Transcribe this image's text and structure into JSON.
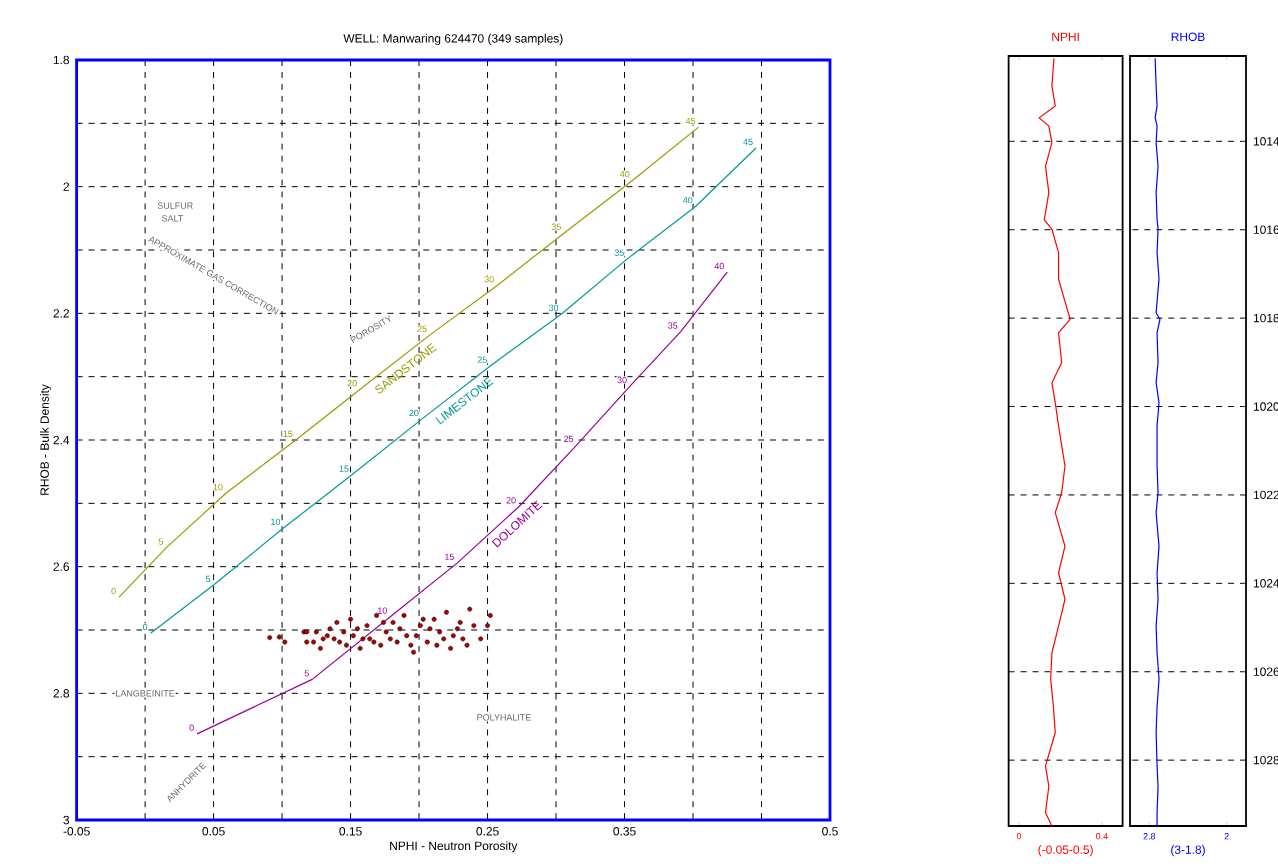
{
  "chart_data": [
    {
      "type": "scatter",
      "title": "WELL: Manwaring 624470  (349 samples)",
      "xlabel": "NPHI - Neutron Porosity",
      "ylabel": "RHOB - Bulk Density",
      "xlim": [
        -0.05,
        0.5
      ],
      "ylim": [
        3,
        1.8
      ],
      "xticks": [
        -0.05,
        {
          "value": 0,
          "label": null
        },
        0.05,
        {
          "value": 0.1,
          "label": null
        },
        0.15,
        {
          "value": 0.2,
          "label": null
        },
        0.25,
        {
          "value": 0.3,
          "label": null
        },
        0.35,
        {
          "value": 0.4,
          "label": null
        },
        {
          "value": 0.45,
          "label": null
        },
        0.5
      ],
      "yticks": [
        1.8,
        {
          "value": 1.9,
          "label": null
        },
        2,
        {
          "value": 2.1,
          "label": null
        },
        2.2,
        {
          "value": 2.3,
          "label": null
        },
        2.4,
        {
          "value": 2.5,
          "label": null
        },
        2.6,
        {
          "value": 2.7,
          "label": null
        },
        2.8,
        {
          "value": 2.9,
          "label": null
        },
        3
      ],
      "grid": true,
      "series": [
        {
          "type": "line",
          "name": "SANDSTONE",
          "color": "#999900",
          "x": [
            -0.019,
            0.0155,
            0.059,
            0.11,
            0.157,
            0.208,
            0.257,
            0.306,
            0.356,
            0.404
          ],
          "values": [
            2.648,
            2.57,
            2.484,
            2.4,
            2.32,
            2.234,
            2.156,
            2.073,
            1.99,
            1.906
          ]
        },
        {
          "type": "line",
          "name": "LIMESTONE",
          "color": "#009999",
          "x": [
            0.004,
            0.05,
            0.101,
            0.151,
            0.202,
            0.252,
            0.304,
            0.352,
            0.402,
            0.446
          ],
          "values": [
            2.705,
            2.629,
            2.539,
            2.455,
            2.367,
            2.283,
            2.201,
            2.114,
            2.031,
            1.939
          ]
        },
        {
          "type": "line",
          "name": "DOLOMITE",
          "color": "#990099",
          "x": [
            0.038,
            0.122,
            0.179,
            0.228,
            0.273,
            0.315,
            0.354,
            0.391,
            0.425
          ],
          "values": [
            2.864,
            2.778,
            2.679,
            2.594,
            2.505,
            2.408,
            2.315,
            2.229,
            2.135
          ]
        },
        {
          "type": "scatter",
          "marker": "circle",
          "color": "#b00000",
          "x": [
            0.091,
            0.098,
            0.102,
            0.116,
            0.118,
            0.125,
            0.13,
            0.135,
            0.14,
            0.142,
            0.15,
            0.152,
            0.157,
            0.162,
            0.164,
            0.169,
            0.172,
            0.176,
            0.181,
            0.184,
            0.189,
            0.191,
            0.196,
            0.201,
            0.206,
            0.211,
            0.215,
            0.22,
            0.223,
            0.228,
            0.232,
            0.237,
            0.24,
            0.245,
            0.25,
            0.252,
            0.138,
            0.145,
            0.155,
            0.167,
            0.174,
            0.186,
            0.194,
            0.198,
            0.208,
            0.213,
            0.218,
            0.225,
            0.23,
            0.235,
            0.128,
            0.133,
            0.147,
            0.159,
            0.179,
            0.203,
            0.118,
            0.123
          ],
          "values": [
            2.712,
            2.711,
            2.719,
            2.703,
            2.719,
            2.703,
            2.714,
            2.698,
            2.688,
            2.719,
            2.683,
            2.709,
            2.729,
            2.693,
            2.714,
            2.677,
            2.724,
            2.703,
            2.688,
            2.719,
            2.677,
            2.709,
            2.735,
            2.693,
            2.719,
            2.683,
            2.703,
            2.672,
            2.729,
            2.698,
            2.714,
            2.667,
            2.693,
            2.714,
            2.693,
            2.677,
            2.714,
            2.703,
            2.698,
            2.719,
            2.688,
            2.698,
            2.724,
            2.709,
            2.698,
            2.724,
            2.714,
            2.709,
            2.688,
            2.724,
            2.729,
            2.709,
            2.724,
            2.714,
            2.714,
            2.683,
            2.703,
            2.719
          ]
        }
      ],
      "annotations": [
        "0",
        "5",
        "10",
        "15",
        "20",
        "25",
        "30",
        "35",
        "40",
        "45",
        "0",
        "5",
        "10",
        "15",
        "20",
        "25",
        "30",
        "35",
        "40",
        "45",
        "0",
        "5",
        "10",
        "15",
        "20",
        "25",
        "30",
        "35",
        "40",
        "SULFUR",
        "SALT",
        "APPROXIMATE GAS CORRECTION",
        "POROSITY",
        "LANGBEINITE",
        "ANHYDRITE",
        "POLYHALITE"
      ]
    },
    {
      "type": "line",
      "title": "NPHI",
      "xlabel": "(-0.05-0.5)",
      "xlim": [
        -0.05,
        0.5
      ],
      "ylim": [
        1029.49,
        1012.07
      ],
      "xticks": [
        0,
        0.4
      ],
      "yticks": [
        1014,
        1016,
        1018,
        1020,
        1022,
        1024,
        1026,
        1028
      ],
      "grid": "y",
      "tick_labels": "x",
      "series": [
        {
          "color": "#ff0000",
          "x": [
            0.169,
            0.159,
            0.175,
            0.097,
            0.144,
            0.159,
            0.128,
            0.144,
            0.122,
            0.159,
            0.191,
            0.191,
            0.238,
            0.247,
            0.191,
            0.206,
            0.159,
            0.175,
            0.191,
            0.222,
            0.206,
            0.175,
            0.222,
            0.191,
            0.222,
            0.191,
            0.159,
            0.153,
            0.166,
            0.175,
            0.128,
            0.144,
            0.128,
            0.159
          ],
          "values": [
            1012.12,
            1012.75,
            1013.2,
            1013.47,
            1013.65,
            1014.03,
            1014.56,
            1015.16,
            1015.77,
            1015.99,
            1016.52,
            1017.12,
            1017.88,
            1018.03,
            1018.33,
            1019.01,
            1019.46,
            1019.91,
            1020.44,
            1021.35,
            1021.95,
            1022.4,
            1023.16,
            1023.76,
            1024.36,
            1024.97,
            1025.57,
            1026.17,
            1026.78,
            1027.38,
            1028.13,
            1028.59,
            1029.19,
            1029.49
          ]
        }
      ]
    },
    {
      "type": "line",
      "title": "RHOB",
      "xlabel": "(3-1.8)",
      "xlim": [
        3,
        1.8
      ],
      "ylim": [
        1029.49,
        1012.07
      ],
      "xticks": [
        2.8,
        2
      ],
      "yticks": [
        1014,
        1016,
        1018,
        1020,
        1022,
        1024,
        1026,
        1028
      ],
      "grid": "y",
      "series": [
        {
          "color": "#0000ff",
          "x": [
            2.74,
            2.73,
            2.72,
            2.74,
            2.72,
            2.73,
            2.71,
            2.73,
            2.72,
            2.71,
            2.72,
            2.7,
            2.73,
            2.69,
            2.72,
            2.71,
            2.73,
            2.7,
            2.72,
            2.72,
            2.71,
            2.73,
            2.7,
            2.72,
            2.71,
            2.73,
            2.72,
            2.7,
            2.72,
            2.73,
            2.72,
            2.71,
            2.72,
            2.72
          ],
          "values": [
            1012.12,
            1012.75,
            1013.2,
            1013.47,
            1013.65,
            1014.03,
            1014.56,
            1015.16,
            1015.77,
            1015.99,
            1016.52,
            1017.12,
            1017.88,
            1018.03,
            1018.33,
            1019.01,
            1019.46,
            1019.91,
            1020.44,
            1021.35,
            1021.95,
            1022.4,
            1023.16,
            1023.76,
            1024.36,
            1024.97,
            1025.57,
            1026.17,
            1026.78,
            1027.38,
            1028.13,
            1028.59,
            1029.19,
            1029.49
          ]
        }
      ]
    }
  ]
}
